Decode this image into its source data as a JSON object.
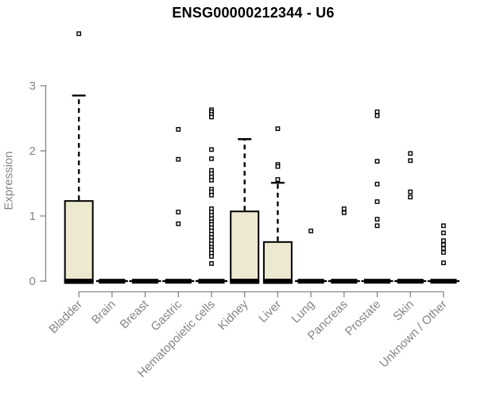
{
  "chart_data": {
    "type": "boxplot",
    "title": "ENSG00000212344 - U6",
    "ylabel": "Expression",
    "xlabel": "",
    "ylim": [
      0,
      3
    ],
    "yticks": [
      0,
      1,
      2,
      3
    ],
    "grid": false,
    "x_tick_rotation": 45,
    "colors": {
      "box_fill": "#ede8d0",
      "box_stroke": "#000000",
      "median": "#000000",
      "axis": "#858585",
      "title": "#000000"
    },
    "categories": [
      "Bladder",
      "Brain",
      "Breast",
      "Gastric",
      "Hematopoietic cells",
      "Kidney",
      "Liver",
      "Lung",
      "Pancreas",
      "Prostate",
      "Skin",
      "Unknown / Other"
    ],
    "series": [
      {
        "category": "Bladder",
        "q1": 0,
        "median": 0,
        "q3": 1.23,
        "whisker_low": 0,
        "whisker_high": 2.85,
        "outliers": [
          3.8
        ]
      },
      {
        "category": "Brain",
        "q1": 0,
        "median": 0,
        "q3": 0,
        "whisker_low": 0,
        "whisker_high": 0,
        "outliers": []
      },
      {
        "category": "Breast",
        "q1": 0,
        "median": 0,
        "q3": 0,
        "whisker_low": 0,
        "whisker_high": 0,
        "outliers": []
      },
      {
        "category": "Gastric",
        "q1": 0,
        "median": 0,
        "q3": 0,
        "whisker_low": 0,
        "whisker_high": 0,
        "outliers": [
          2.33,
          1.87,
          1.06,
          0.88
        ]
      },
      {
        "category": "Hematopoietic cells",
        "q1": 0,
        "median": 0,
        "q3": 0,
        "whisker_low": 0,
        "whisker_high": 0,
        "outliers": [
          2.63,
          2.6,
          2.56,
          2.52,
          2.02,
          1.88,
          1.7,
          1.65,
          1.6,
          1.55,
          1.41,
          1.37,
          1.32,
          1.11,
          1.06,
          1.01,
          0.96,
          0.91,
          0.87,
          0.82,
          0.77,
          0.72,
          0.67,
          0.62,
          0.57,
          0.52,
          0.48,
          0.43,
          0.38,
          0.27
        ]
      },
      {
        "category": "Kidney",
        "q1": 0,
        "median": 0,
        "q3": 1.07,
        "whisker_low": 0,
        "whisker_high": 2.18,
        "outliers": []
      },
      {
        "category": "Liver",
        "q1": 0,
        "median": 0,
        "q3": 0.6,
        "whisker_low": 0,
        "whisker_high": 1.51,
        "outliers": [
          2.34,
          1.79,
          1.76,
          1.56
        ]
      },
      {
        "category": "Lung",
        "q1": 0,
        "median": 0,
        "q3": 0,
        "whisker_low": 0,
        "whisker_high": 0,
        "outliers": [
          0.77
        ]
      },
      {
        "category": "Pancreas",
        "q1": 0,
        "median": 0,
        "q3": 0,
        "whisker_low": 0,
        "whisker_high": 0,
        "outliers": [
          1.11,
          1.05
        ]
      },
      {
        "category": "Prostate",
        "q1": 0,
        "median": 0,
        "q3": 0,
        "whisker_low": 0,
        "whisker_high": 0,
        "outliers": [
          2.6,
          2.54,
          1.84,
          1.49,
          1.22,
          0.95,
          0.85
        ]
      },
      {
        "category": "Skin",
        "q1": 0,
        "median": 0,
        "q3": 0,
        "whisker_low": 0,
        "whisker_high": 0,
        "outliers": [
          1.96,
          1.85,
          1.37,
          1.29
        ]
      },
      {
        "category": "Unknown / Other",
        "q1": 0,
        "median": 0,
        "q3": 0,
        "whisker_low": 0,
        "whisker_high": 0,
        "outliers": [
          0.85,
          0.74,
          0.62,
          0.56,
          0.5,
          0.44,
          0.28
        ]
      }
    ]
  }
}
